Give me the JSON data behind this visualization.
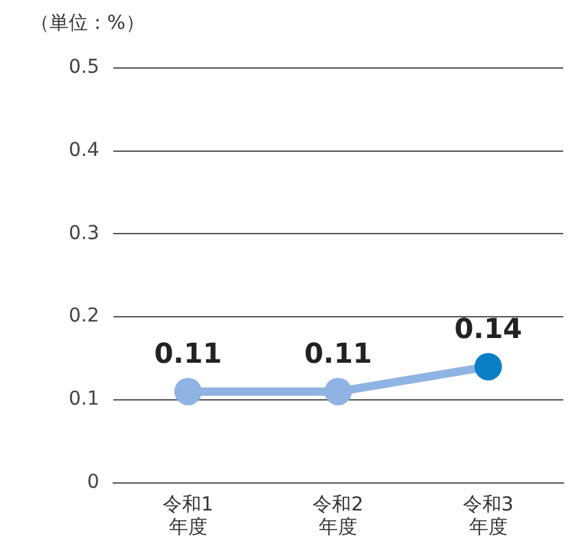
{
  "chart_data": {
    "type": "line",
    "ylabel": "（単位：%）",
    "categories": [
      "令和1年度",
      "令和2年度",
      "令和3年度"
    ],
    "series": [
      {
        "color": "#8fb3e3",
        "colors": [
          "#8fb3e3",
          "#8fb3e3",
          "#0a7fc6"
        ],
        "values": [
          0.11,
          0.11,
          0.14
        ]
      }
    ],
    "ylim": [
      0,
      0.5
    ],
    "yticks": [
      0,
      0.1,
      0.2,
      0.3,
      0.4,
      0.5
    ],
    "grid": "y",
    "legend": false,
    "marker": "circle",
    "line_style": "solid",
    "data_labels": true
  }
}
